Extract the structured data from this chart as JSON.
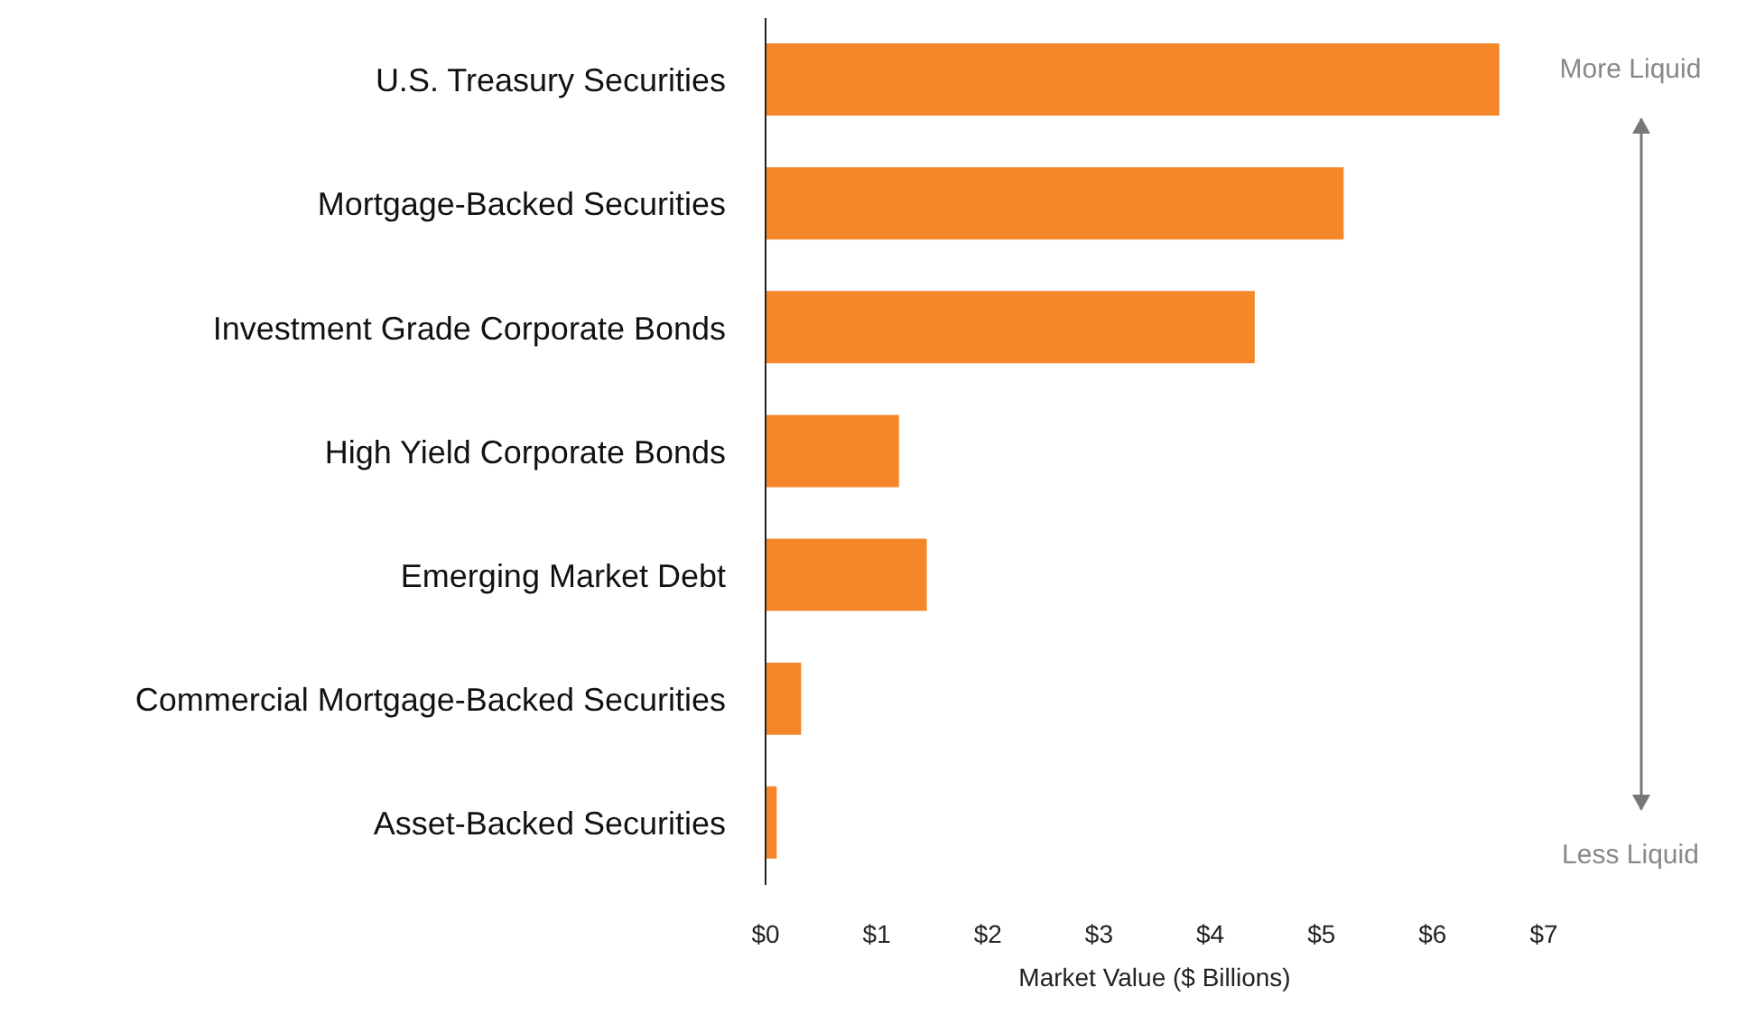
{
  "chart_data": {
    "type": "bar",
    "orientation": "horizontal",
    "xlabel": "Market Value ($ Billions)",
    "categories": [
      "U.S. Treasury Securities",
      "Mortgage-Backed Securities",
      "Investment Grade Corporate Bonds",
      "High Yield Corporate Bonds",
      "Emerging Market Debt ",
      "Commercial Mortgage-Backed Securities",
      "Asset-Backed Securities"
    ],
    "values": [
      6.6,
      5.2,
      4.4,
      1.2,
      1.45,
      0.32,
      0.1
    ],
    "color": "#f5862a",
    "xlim": [
      0,
      7
    ],
    "xticks": [
      {
        "value": 0,
        "label": "$0"
      },
      {
        "value": 1,
        "label": "$1"
      },
      {
        "value": 2,
        "label": "$2"
      },
      {
        "value": 3,
        "label": "$3"
      },
      {
        "value": 4,
        "label": "$4"
      },
      {
        "value": 5,
        "label": "$5"
      },
      {
        "value": 6,
        "label": "$6"
      },
      {
        "value": 7,
        "label": "$7"
      }
    ],
    "annotations": [
      "More Liquid",
      "Less Liquid"
    ],
    "grid": false,
    "legend": false
  }
}
